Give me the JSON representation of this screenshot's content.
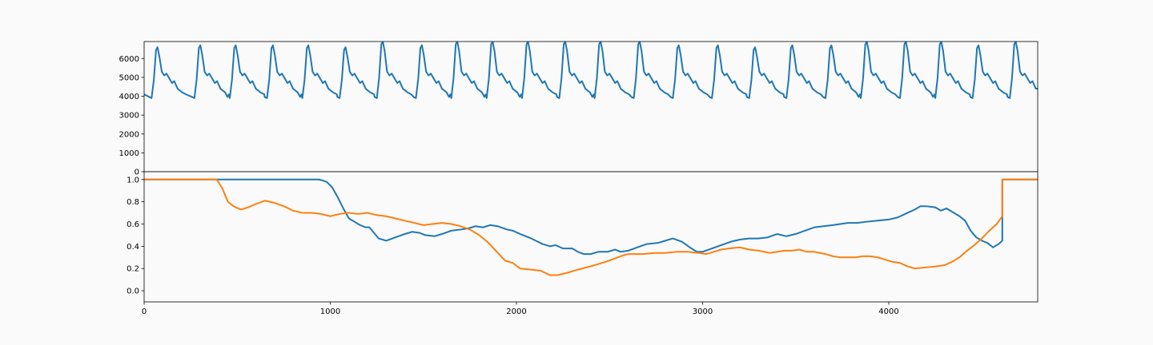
{
  "chart_data": [
    {
      "type": "line",
      "title": "",
      "xlabel": "",
      "ylabel": "",
      "xlim": [
        0,
        4800
      ],
      "ylim": [
        0,
        6900
      ],
      "yticks": [
        0,
        1000,
        2000,
        3000,
        4000,
        5000,
        6000
      ],
      "grid": false,
      "series": [
        {
          "color": "#1f77b4",
          "waveform": {
            "start_x": 0,
            "start_y": 4100,
            "end_x": 4800,
            "end_y": 4400,
            "beats_x": [
              40,
              270,
              460,
              660,
              850,
              1050,
              1250,
              1460,
              1650,
              1840,
              2030,
              2230,
              2420,
              2630,
              2840,
              3050,
              3250,
              3450,
              3660,
              3850,
              4060,
              4250,
              4450,
              4650
            ],
            "baseline_y": 3900,
            "peak_y": [
              6600,
              6700,
              6700,
              6700,
              6700,
              6600,
              6900,
              6700,
              6900,
              6900,
              6900,
              6900,
              6900,
              6900,
              6700,
              6700,
              6600,
              6700,
              6700,
              6900,
              6900,
              6900,
              6700,
              6900
            ],
            "notch_y": 5100
          }
        }
      ]
    },
    {
      "type": "line",
      "title": "",
      "xlabel": "",
      "ylabel": "",
      "xlim": [
        0,
        4800
      ],
      "ylim": [
        -0.1,
        1.07
      ],
      "xticks": [
        0,
        1000,
        2000,
        3000,
        4000
      ],
      "yticks": [
        0.0,
        0.2,
        0.4,
        0.6,
        0.8,
        1.0
      ],
      "grid": false,
      "series": [
        {
          "color": "#1f77b4",
          "points": [
            [
              0,
              1.0
            ],
            [
              940,
              1.0
            ],
            [
              980,
              0.98
            ],
            [
              1010,
              0.93
            ],
            [
              1040,
              0.84
            ],
            [
              1070,
              0.74
            ],
            [
              1100,
              0.65
            ],
            [
              1130,
              0.62
            ],
            [
              1160,
              0.59
            ],
            [
              1190,
              0.57
            ],
            [
              1210,
              0.57
            ],
            [
              1230,
              0.53
            ],
            [
              1260,
              0.47
            ],
            [
              1300,
              0.45
            ],
            [
              1350,
              0.48
            ],
            [
              1400,
              0.51
            ],
            [
              1440,
              0.53
            ],
            [
              1480,
              0.52
            ],
            [
              1510,
              0.5
            ],
            [
              1560,
              0.49
            ],
            [
              1600,
              0.51
            ],
            [
              1650,
              0.54
            ],
            [
              1700,
              0.55
            ],
            [
              1740,
              0.56
            ],
            [
              1780,
              0.58
            ],
            [
              1820,
              0.57
            ],
            [
              1860,
              0.59
            ],
            [
              1900,
              0.58
            ],
            [
              1950,
              0.55
            ],
            [
              1980,
              0.54
            ],
            [
              2020,
              0.51
            ],
            [
              2080,
              0.47
            ],
            [
              2140,
              0.42
            ],
            [
              2180,
              0.4
            ],
            [
              2210,
              0.41
            ],
            [
              2250,
              0.38
            ],
            [
              2300,
              0.38
            ],
            [
              2330,
              0.35
            ],
            [
              2360,
              0.33
            ],
            [
              2400,
              0.33
            ],
            [
              2440,
              0.35
            ],
            [
              2490,
              0.35
            ],
            [
              2530,
              0.37
            ],
            [
              2560,
              0.35
            ],
            [
              2600,
              0.36
            ],
            [
              2650,
              0.39
            ],
            [
              2700,
              0.42
            ],
            [
              2760,
              0.43
            ],
            [
              2800,
              0.45
            ],
            [
              2840,
              0.47
            ],
            [
              2890,
              0.44
            ],
            [
              2940,
              0.38
            ],
            [
              2970,
              0.35
            ],
            [
              3000,
              0.35
            ],
            [
              3050,
              0.38
            ],
            [
              3100,
              0.41
            ],
            [
              3150,
              0.44
            ],
            [
              3200,
              0.46
            ],
            [
              3250,
              0.47
            ],
            [
              3300,
              0.47
            ],
            [
              3350,
              0.48
            ],
            [
              3400,
              0.51
            ],
            [
              3450,
              0.49
            ],
            [
              3500,
              0.51
            ],
            [
              3550,
              0.54
            ],
            [
              3600,
              0.57
            ],
            [
              3650,
              0.58
            ],
            [
              3700,
              0.59
            ],
            [
              3740,
              0.6
            ],
            [
              3780,
              0.61
            ],
            [
              3830,
              0.61
            ],
            [
              3880,
              0.62
            ],
            [
              3940,
              0.63
            ],
            [
              4000,
              0.64
            ],
            [
              4050,
              0.66
            ],
            [
              4100,
              0.7
            ],
            [
              4140,
              0.73
            ],
            [
              4170,
              0.76
            ],
            [
              4200,
              0.76
            ],
            [
              4250,
              0.75
            ],
            [
              4280,
              0.72
            ],
            [
              4310,
              0.74
            ],
            [
              4340,
              0.71
            ],
            [
              4380,
              0.67
            ],
            [
              4410,
              0.63
            ],
            [
              4440,
              0.54
            ],
            [
              4470,
              0.48
            ],
            [
              4500,
              0.45
            ],
            [
              4530,
              0.43
            ],
            [
              4560,
              0.39
            ],
            [
              4590,
              0.42
            ],
            [
              4610,
              0.45
            ],
            [
              4610,
              1.0
            ],
            [
              4800,
              1.0
            ]
          ]
        },
        {
          "color": "#ff7f0e",
          "points": [
            [
              0,
              1.0
            ],
            [
              390,
              1.0
            ],
            [
              420,
              0.92
            ],
            [
              450,
              0.8
            ],
            [
              480,
              0.76
            ],
            [
              520,
              0.73
            ],
            [
              560,
              0.75
            ],
            [
              600,
              0.78
            ],
            [
              650,
              0.81
            ],
            [
              700,
              0.79
            ],
            [
              750,
              0.76
            ],
            [
              800,
              0.72
            ],
            [
              850,
              0.7
            ],
            [
              900,
              0.7
            ],
            [
              950,
              0.69
            ],
            [
              1000,
              0.67
            ],
            [
              1050,
              0.69
            ],
            [
              1100,
              0.7
            ],
            [
              1150,
              0.69
            ],
            [
              1200,
              0.7
            ],
            [
              1250,
              0.68
            ],
            [
              1300,
              0.67
            ],
            [
              1350,
              0.65
            ],
            [
              1400,
              0.63
            ],
            [
              1450,
              0.61
            ],
            [
              1500,
              0.59
            ],
            [
              1550,
              0.6
            ],
            [
              1600,
              0.61
            ],
            [
              1650,
              0.6
            ],
            [
              1700,
              0.58
            ],
            [
              1750,
              0.55
            ],
            [
              1800,
              0.5
            ],
            [
              1850,
              0.43
            ],
            [
              1900,
              0.34
            ],
            [
              1940,
              0.27
            ],
            [
              1980,
              0.25
            ],
            [
              2020,
              0.2
            ],
            [
              2080,
              0.19
            ],
            [
              2130,
              0.18
            ],
            [
              2180,
              0.14
            ],
            [
              2220,
              0.14
            ],
            [
              2270,
              0.16
            ],
            [
              2330,
              0.19
            ],
            [
              2400,
              0.22
            ],
            [
              2480,
              0.26
            ],
            [
              2560,
              0.31
            ],
            [
              2600,
              0.33
            ],
            [
              2680,
              0.33
            ],
            [
              2740,
              0.34
            ],
            [
              2800,
              0.34
            ],
            [
              2860,
              0.35
            ],
            [
              2920,
              0.35
            ],
            [
              2980,
              0.34
            ],
            [
              3020,
              0.33
            ],
            [
              3060,
              0.35
            ],
            [
              3100,
              0.37
            ],
            [
              3140,
              0.38
            ],
            [
              3200,
              0.39
            ],
            [
              3250,
              0.37
            ],
            [
              3300,
              0.36
            ],
            [
              3360,
              0.34
            ],
            [
              3400,
              0.35
            ],
            [
              3440,
              0.36
            ],
            [
              3480,
              0.36
            ],
            [
              3520,
              0.37
            ],
            [
              3560,
              0.35
            ],
            [
              3600,
              0.35
            ],
            [
              3660,
              0.33
            ],
            [
              3700,
              0.31
            ],
            [
              3740,
              0.3
            ],
            [
              3780,
              0.3
            ],
            [
              3820,
              0.3
            ],
            [
              3860,
              0.31
            ],
            [
              3900,
              0.31
            ],
            [
              3940,
              0.3
            ],
            [
              3980,
              0.28
            ],
            [
              4020,
              0.26
            ],
            [
              4060,
              0.25
            ],
            [
              4100,
              0.22
            ],
            [
              4140,
              0.2
            ],
            [
              4200,
              0.21
            ],
            [
              4260,
              0.22
            ],
            [
              4300,
              0.23
            ],
            [
              4340,
              0.26
            ],
            [
              4380,
              0.3
            ],
            [
              4420,
              0.36
            ],
            [
              4460,
              0.41
            ],
            [
              4500,
              0.47
            ],
            [
              4540,
              0.54
            ],
            [
              4580,
              0.6
            ],
            [
              4610,
              0.67
            ],
            [
              4610,
              1.0
            ],
            [
              4800,
              1.0
            ]
          ]
        }
      ]
    }
  ]
}
